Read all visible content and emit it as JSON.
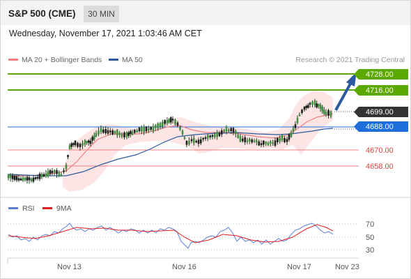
{
  "header": {
    "title": "S&P 500 (CME)",
    "timeframe": "30 MIN"
  },
  "date_line": "Wednesday, November 17, 2021 1:03:46 AM CET",
  "legend": {
    "ma20": {
      "label": "MA 20 + Bollinger Bands",
      "color": "#f08080"
    },
    "ma50": {
      "label": "MA 50",
      "color": "#2c5aa0"
    }
  },
  "credit": "Research © 2021 Trading Central",
  "price_levels": [
    {
      "label": "4728.00",
      "kind": "resistance",
      "color": "#5aa800"
    },
    {
      "label": "4716.00",
      "kind": "resistance",
      "color": "#5aa800"
    },
    {
      "label": "4699.00",
      "kind": "last",
      "color": "#333333"
    },
    {
      "label": "4688.00",
      "kind": "pivot",
      "color": "#1e6fd9"
    },
    {
      "label": "4670.00",
      "kind": "support",
      "color": "#e04040"
    },
    {
      "label": "4658.00",
      "kind": "support",
      "color": "#e04040"
    }
  ],
  "rsi_legend": {
    "rsi": {
      "label": "RSI",
      "color": "#5b7fd6"
    },
    "ma": {
      "label": "9MA",
      "color": "#e02020"
    }
  },
  "rsi_levels": [
    "70",
    "50",
    "30"
  ],
  "x_labels": [
    "Nov 13",
    "Nov 16",
    "Nov 17",
    "Nov 23"
  ]
}
